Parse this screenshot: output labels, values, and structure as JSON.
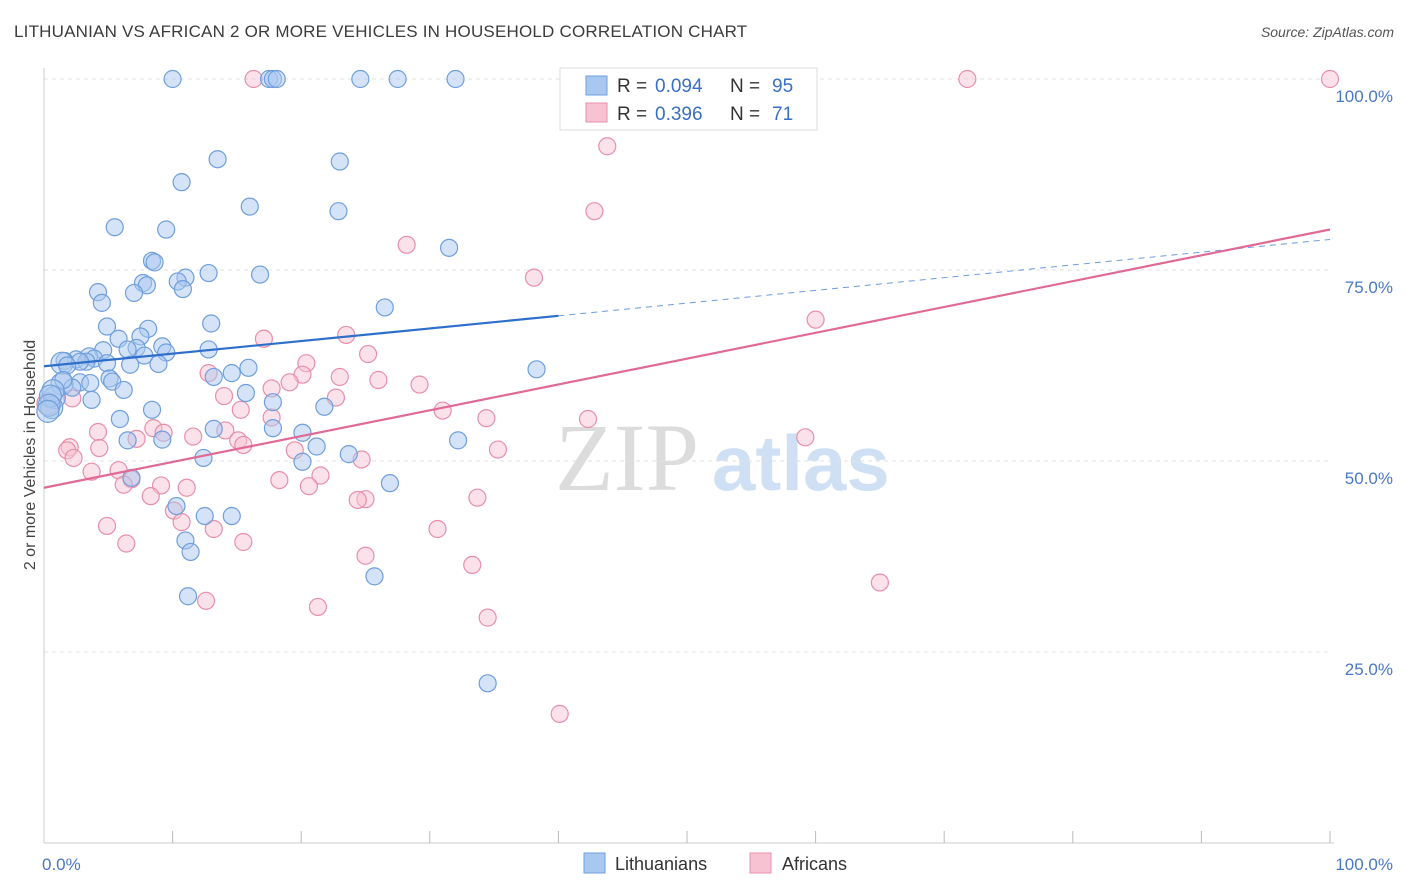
{
  "title": "LITHUANIAN VS AFRICAN 2 OR MORE VEHICLES IN HOUSEHOLD CORRELATION CHART",
  "source": "Source: ZipAtlas.com",
  "watermark": {
    "zip": "ZIP",
    "atlas": "atlas"
  },
  "colors": {
    "blue_fill": "#a9c8ef",
    "blue_stroke": "#6f9fdc",
    "blue_line": "#2f6fcc",
    "pink_fill": "#f7c3d3",
    "pink_stroke": "#e88fab",
    "pink_line": "#e06a96",
    "tick_color": "#4a78c4"
  },
  "legend": {
    "rows": [
      {
        "r_label": "R =",
        "r_value": "0.094",
        "n_label": "N =",
        "n_value": "95"
      },
      {
        "r_label": "R =",
        "r_value": "0.396",
        "n_label": "N =",
        "n_value": "71"
      }
    ]
  },
  "chart_data": {
    "type": "scatter",
    "title": "LITHUANIAN VS AFRICAN 2 OR MORE VEHICLES IN HOUSEHOLD CORRELATION CHART",
    "xlabel": "",
    "ylabel": "2 or more Vehicles in Household",
    "xlim": [
      0,
      100
    ],
    "ylim": [
      0,
      100
    ],
    "x_tick_labels": [
      "0.0%",
      "100.0%"
    ],
    "y_ticks": [
      25,
      50,
      75,
      100
    ],
    "y_tick_labels": [
      "25.0%",
      "50.0%",
      "75.0%",
      "100.0%"
    ],
    "grid": true,
    "legend_position": "top-center",
    "series": [
      {
        "name": "Lithuanians",
        "r": 0.094,
        "n": 95,
        "trend": {
          "x0": 0,
          "y0": 62.4,
          "x1": 40,
          "y1": 69.0,
          "dashed_to_x": 100,
          "dashed_y": 79.0
        },
        "points": [
          [
            10,
            100
          ],
          [
            17.5,
            100
          ],
          [
            17.8,
            100
          ],
          [
            18.1,
            100
          ],
          [
            24.6,
            100
          ],
          [
            27.5,
            100
          ],
          [
            32,
            100
          ],
          [
            13.5,
            89.5
          ],
          [
            23,
            89.2
          ],
          [
            10.7,
            86.5
          ],
          [
            16,
            83.3
          ],
          [
            22.9,
            82.7
          ],
          [
            5.5,
            80.6
          ],
          [
            9.5,
            80.3
          ],
          [
            31.5,
            77.9
          ],
          [
            8.4,
            76.2
          ],
          [
            8.6,
            76
          ],
          [
            12.8,
            74.6
          ],
          [
            16.8,
            74.4
          ],
          [
            11,
            74
          ],
          [
            10.4,
            73.5
          ],
          [
            7.7,
            73.3
          ],
          [
            8,
            73
          ],
          [
            10.8,
            72.5
          ],
          [
            4.2,
            72.1
          ],
          [
            7,
            72
          ],
          [
            4.5,
            70.7
          ],
          [
            26.5,
            70.1
          ],
          [
            13,
            68
          ],
          [
            4.9,
            67.6
          ],
          [
            8.1,
            67.3
          ],
          [
            5.8,
            66
          ],
          [
            7.5,
            66.3
          ],
          [
            9.2,
            65
          ],
          [
            7.2,
            64.8
          ],
          [
            12.8,
            64.6
          ],
          [
            6.5,
            64.6
          ],
          [
            4.6,
            64.5
          ],
          [
            9.5,
            64.2
          ],
          [
            7.8,
            63.8
          ],
          [
            3.5,
            63.7
          ],
          [
            3.9,
            63.4
          ],
          [
            2.5,
            63.3
          ],
          [
            1.6,
            63.1
          ],
          [
            1.4,
            62.8
          ],
          [
            3.3,
            63
          ],
          [
            2.8,
            63
          ],
          [
            4.9,
            62.8
          ],
          [
            8.9,
            62.7
          ],
          [
            6.7,
            62.6
          ],
          [
            1.8,
            62.5
          ],
          [
            15.9,
            62.2
          ],
          [
            38.3,
            62
          ],
          [
            14.6,
            61.5
          ],
          [
            13.2,
            61
          ],
          [
            5.1,
            60.8
          ],
          [
            5.3,
            60.4
          ],
          [
            2.8,
            60.3
          ],
          [
            1.4,
            60.1
          ],
          [
            3.6,
            60.2
          ],
          [
            2.2,
            59.6
          ],
          [
            6.2,
            59.3
          ],
          [
            15.7,
            58.9
          ],
          [
            3.7,
            58
          ],
          [
            0.8,
            58.3
          ],
          [
            17.8,
            57.7
          ],
          [
            21.8,
            57.1
          ],
          [
            0.6,
            57
          ],
          [
            8.4,
            56.7
          ],
          [
            5.9,
            55.5
          ],
          [
            17.8,
            54.3
          ],
          [
            13.2,
            54.2
          ],
          [
            20.1,
            53.7
          ],
          [
            6.5,
            52.7
          ],
          [
            9.2,
            52.8
          ],
          [
            32.2,
            52.7
          ],
          [
            21.2,
            51.9
          ],
          [
            12.4,
            50.4
          ],
          [
            23.7,
            50.9
          ],
          [
            20.1,
            49.9
          ],
          [
            6.8,
            47.8
          ],
          [
            26.9,
            47.1
          ],
          [
            10.3,
            44.1
          ],
          [
            12.5,
            42.8
          ],
          [
            14.6,
            42.8
          ],
          [
            11,
            39.6
          ],
          [
            11.4,
            38.1
          ],
          [
            25.7,
            34.9
          ],
          [
            11.2,
            32.3
          ],
          [
            34.5,
            20.9
          ],
          [
            1.5,
            60.6
          ],
          [
            0.7,
            59.2
          ],
          [
            0.5,
            58.5
          ],
          [
            0.4,
            57.3
          ],
          [
            0.3,
            56.5
          ]
        ]
      },
      {
        "name": "Africans",
        "r": 0.396,
        "n": 71,
        "trend": {
          "x0": 0,
          "y0": 46.5,
          "x1": 100,
          "y1": 80.3
        },
        "points": [
          [
            16.3,
            100
          ],
          [
            71.8,
            100
          ],
          [
            100,
            100
          ],
          [
            43.8,
            91.2
          ],
          [
            42.8,
            82.7
          ],
          [
            28.2,
            78.3
          ],
          [
            38.1,
            74
          ],
          [
            60,
            68.5
          ],
          [
            17.1,
            66
          ],
          [
            23.5,
            66.5
          ],
          [
            25.2,
            64
          ],
          [
            20.4,
            62.8
          ],
          [
            20.1,
            61.3
          ],
          [
            23,
            61
          ],
          [
            12.8,
            61.5
          ],
          [
            26,
            60.6
          ],
          [
            19.1,
            60.3
          ],
          [
            29.2,
            60
          ],
          [
            17.7,
            59.5
          ],
          [
            14,
            58.5
          ],
          [
            22.7,
            58.3
          ],
          [
            2.2,
            58.2
          ],
          [
            0.3,
            57.5
          ],
          [
            15.3,
            56.7
          ],
          [
            31,
            56.6
          ],
          [
            17.7,
            55.7
          ],
          [
            34.4,
            55.6
          ],
          [
            42.3,
            55.5
          ],
          [
            8.5,
            54.3
          ],
          [
            14.1,
            54
          ],
          [
            4.2,
            53.8
          ],
          [
            9.3,
            53.7
          ],
          [
            11.6,
            53.2
          ],
          [
            15.1,
            52.7
          ],
          [
            7.2,
            52.9
          ],
          [
            59.2,
            53.1
          ],
          [
            15.5,
            52.1
          ],
          [
            2,
            51.8
          ],
          [
            4.3,
            51.7
          ],
          [
            1.8,
            51.4
          ],
          [
            19.5,
            51.4
          ],
          [
            35.3,
            51.5
          ],
          [
            2.3,
            50.4
          ],
          [
            24.7,
            50.2
          ],
          [
            3.7,
            48.6
          ],
          [
            5.8,
            48.8
          ],
          [
            21.5,
            48.1
          ],
          [
            18.3,
            47.5
          ],
          [
            6.8,
            47.6
          ],
          [
            6.2,
            46.9
          ],
          [
            9.1,
            46.8
          ],
          [
            11.1,
            46.5
          ],
          [
            20.6,
            46.7
          ],
          [
            8.3,
            45.4
          ],
          [
            25,
            45
          ],
          [
            24.4,
            44.9
          ],
          [
            33.7,
            45.2
          ],
          [
            10.1,
            43.5
          ],
          [
            10.7,
            42
          ],
          [
            4.9,
            41.5
          ],
          [
            30.6,
            41.1
          ],
          [
            13.2,
            41.1
          ],
          [
            6.4,
            39.2
          ],
          [
            15.5,
            39.4
          ],
          [
            25,
            37.6
          ],
          [
            33.3,
            36.4
          ],
          [
            65,
            34.1
          ],
          [
            12.6,
            31.7
          ],
          [
            21.3,
            30.9
          ],
          [
            34.5,
            29.5
          ],
          [
            40.1,
            16.9
          ]
        ]
      }
    ]
  },
  "bottom_legend": {
    "items": [
      "Lithuanians",
      "Africans"
    ]
  }
}
